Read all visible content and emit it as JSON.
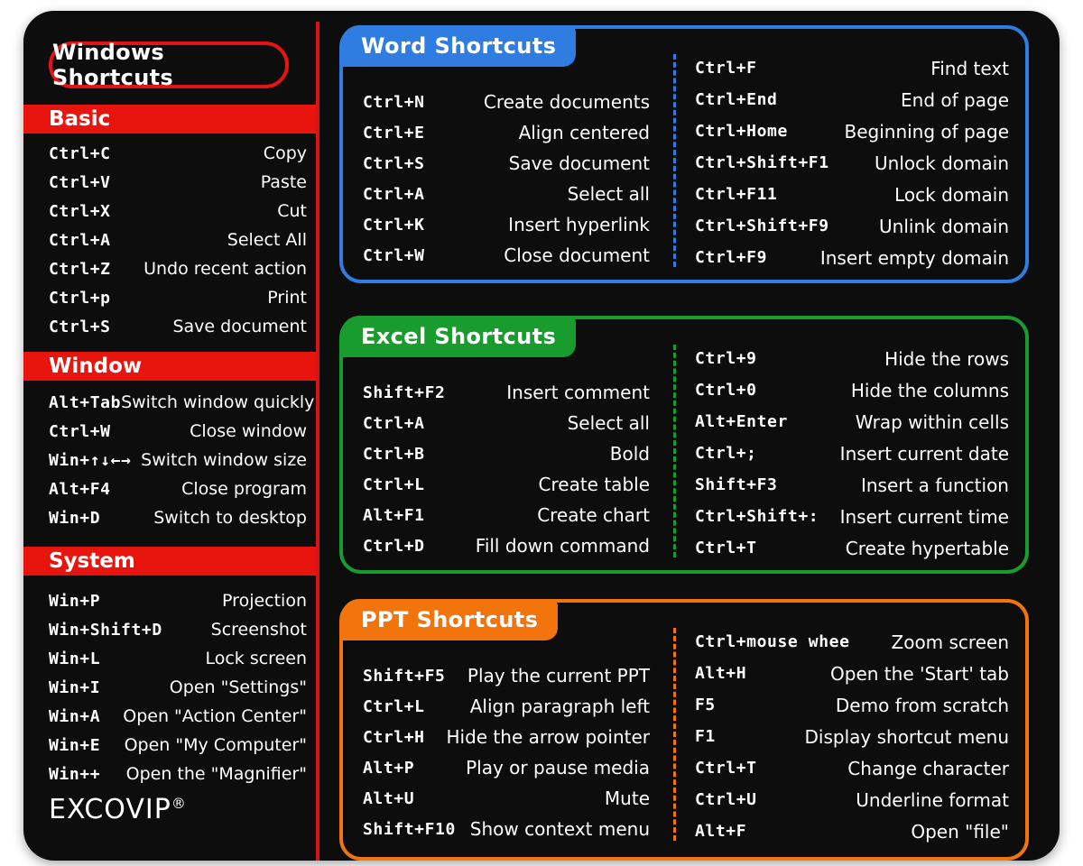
{
  "title": "Windows Shortcuts",
  "brand": {
    "name": "EXCOVIP",
    "mark": "®"
  },
  "colors": {
    "basic": "#e8150f",
    "word": "#2f7de0",
    "excel": "#199c2e",
    "ppt": "#f2740c"
  },
  "basic": {
    "heading": "Basic",
    "items": [
      {
        "key": "Ctrl+C",
        "desc": "Copy"
      },
      {
        "key": "Ctrl+V",
        "desc": "Paste"
      },
      {
        "key": "Ctrl+X",
        "desc": "Cut"
      },
      {
        "key": "Ctrl+A",
        "desc": "Select All"
      },
      {
        "key": "Ctrl+Z",
        "desc": "Undo recent action"
      },
      {
        "key": "Ctrl+p",
        "desc": "Print"
      },
      {
        "key": "Ctrl+S",
        "desc": "Save document"
      }
    ]
  },
  "window": {
    "heading": "Window",
    "items": [
      {
        "key": "Alt+Tab",
        "desc": "Switch window quickly"
      },
      {
        "key": "Ctrl+W",
        "desc": "Close window"
      },
      {
        "key": "Win+↑↓←→",
        "desc": "Switch window size"
      },
      {
        "key": "Alt+F4",
        "desc": "Close program"
      },
      {
        "key": "Win+D",
        "desc": "Switch to desktop"
      }
    ]
  },
  "system": {
    "heading": "System",
    "items": [
      {
        "key": "Win+P",
        "desc": "Projection"
      },
      {
        "key": "Win+Shift+D",
        "desc": "Screenshot"
      },
      {
        "key": "Win+L",
        "desc": "Lock screen"
      },
      {
        "key": "Win+I",
        "desc": "Open \"Settings\""
      },
      {
        "key": "Win+A",
        "desc": "Open \"Action Center\""
      },
      {
        "key": "Win+E",
        "desc": "Open \"My Computer\""
      },
      {
        "key": "Win++",
        "desc": "Open the \"Magnifier\""
      }
    ]
  },
  "word": {
    "heading": "Word Shortcuts",
    "left": [
      {
        "key": "Ctrl+N",
        "desc": "Create documents"
      },
      {
        "key": "Ctrl+E",
        "desc": "Align centered"
      },
      {
        "key": "Ctrl+S",
        "desc": "Save document"
      },
      {
        "key": "Ctrl+A",
        "desc": "Select all"
      },
      {
        "key": "Ctrl+K",
        "desc": "Insert hyperlink"
      },
      {
        "key": "Ctrl+W",
        "desc": "Close document"
      }
    ],
    "right": [
      {
        "key": "Ctrl+F",
        "desc": "Find text"
      },
      {
        "key": "Ctrl+End",
        "desc": "End of page"
      },
      {
        "key": "Ctrl+Home",
        "desc": "Beginning of page"
      },
      {
        "key": "Ctrl+Shift+F1",
        "desc": "Unlock domain"
      },
      {
        "key": "Ctrl+F11",
        "desc": "Lock domain"
      },
      {
        "key": "Ctrl+Shift+F9",
        "desc": "Unlink domain"
      },
      {
        "key": "Ctrl+F9",
        "desc": "Insert empty domain"
      }
    ]
  },
  "excel": {
    "heading": "Excel Shortcuts",
    "left": [
      {
        "key": "Shift+F2",
        "desc": "Insert comment"
      },
      {
        "key": "Ctrl+A",
        "desc": "Select all"
      },
      {
        "key": "Ctrl+B",
        "desc": "Bold"
      },
      {
        "key": "Ctrl+L",
        "desc": "Create table"
      },
      {
        "key": "Alt+F1",
        "desc": "Create chart"
      },
      {
        "key": "Ctrl+D",
        "desc": "Fill down command"
      }
    ],
    "right": [
      {
        "key": "Ctrl+9",
        "desc": "Hide the rows"
      },
      {
        "key": "Ctrl+0",
        "desc": "Hide the columns"
      },
      {
        "key": "Alt+Enter",
        "desc": "Wrap within cells"
      },
      {
        "key": "Ctrl+;",
        "desc": "Insert current date"
      },
      {
        "key": "Shift+F3",
        "desc": "Insert a function"
      },
      {
        "key": "Ctrl+Shift+:",
        "desc": "Insert current time"
      },
      {
        "key": "Ctrl+T",
        "desc": "Create hypertable"
      }
    ]
  },
  "ppt": {
    "heading": "PPT Shortcuts",
    "left": [
      {
        "key": "Shift+F5",
        "desc": "Play the current PPT"
      },
      {
        "key": "Ctrl+L",
        "desc": "Align paragraph left"
      },
      {
        "key": "Ctrl+H",
        "desc": "Hide the arrow pointer"
      },
      {
        "key": "Alt+P",
        "desc": "Play or pause media"
      },
      {
        "key": "Alt+U",
        "desc": "Mute"
      },
      {
        "key": "Shift+F10",
        "desc": "Show context menu"
      }
    ],
    "right": [
      {
        "key": "Ctrl+mouse whee",
        "desc": "Zoom screen"
      },
      {
        "key": "Alt+H",
        "desc": "Open the 'Start' tab"
      },
      {
        "key": "F5",
        "desc": "Demo from scratch"
      },
      {
        "key": "F1",
        "desc": "Display shortcut menu"
      },
      {
        "key": "Ctrl+T",
        "desc": "Change character"
      },
      {
        "key": "Ctrl+U",
        "desc": "Underline format"
      },
      {
        "key": "Alt+F",
        "desc": "Open \"file\""
      }
    ]
  }
}
